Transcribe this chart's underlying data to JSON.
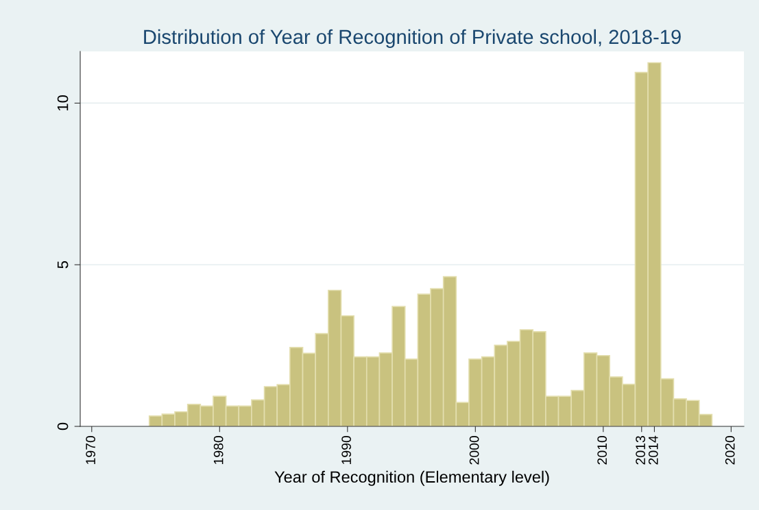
{
  "chart_data": {
    "type": "histogram",
    "title": "Distribution of Year of Recognition of Private school, 2018-19",
    "xlabel": "Year of Recognition (Elementary level)",
    "bins": [
      1974.5,
      1975.5,
      1976.5,
      1977.5,
      1978.5,
      1979.5,
      1980.5,
      1981.5,
      1982.5,
      1983.5,
      1984.5,
      1985.5,
      1986.5,
      1987.5,
      1988.5,
      1989.5,
      1990.5,
      1991.5,
      1992.5,
      1993.5,
      1994.5,
      1995.5,
      1996.5,
      1997.5,
      1998.5,
      1999.5,
      2000.5,
      2001.5,
      2002.5,
      2003.5,
      2004.5,
      2005.5,
      2006.5,
      2007.5,
      2008.5,
      2009.5,
      2010.5,
      2011.5,
      2012.5,
      2013.5,
      2014.5,
      2015.5,
      2016.5,
      2017.5,
      2018.5
    ],
    "values": [
      0.32,
      0.38,
      0.45,
      0.68,
      0.63,
      0.93,
      0.63,
      0.63,
      0.82,
      1.23,
      1.29,
      2.44,
      2.26,
      2.87,
      4.21,
      3.42,
      2.15,
      2.15,
      2.27,
      3.71,
      2.08,
      4.09,
      4.26,
      4.63,
      0.74,
      2.08,
      2.15,
      2.51,
      2.63,
      2.99,
      2.93,
      0.93,
      0.93,
      1.11,
      2.27,
      2.19,
      1.53,
      1.3,
      10.95,
      11.25,
      1.47,
      0.85,
      0.8,
      0.37
    ],
    "color": "#c9c27f",
    "xlim": [
      1969.1,
      2021.0
    ],
    "xticks": [
      1970,
      1980,
      1990,
      2000,
      2010,
      2013,
      2014,
      2020
    ],
    "ylim": [
      0,
      11.6
    ],
    "yticks": [
      0,
      5,
      10
    ],
    "grid": "y"
  }
}
